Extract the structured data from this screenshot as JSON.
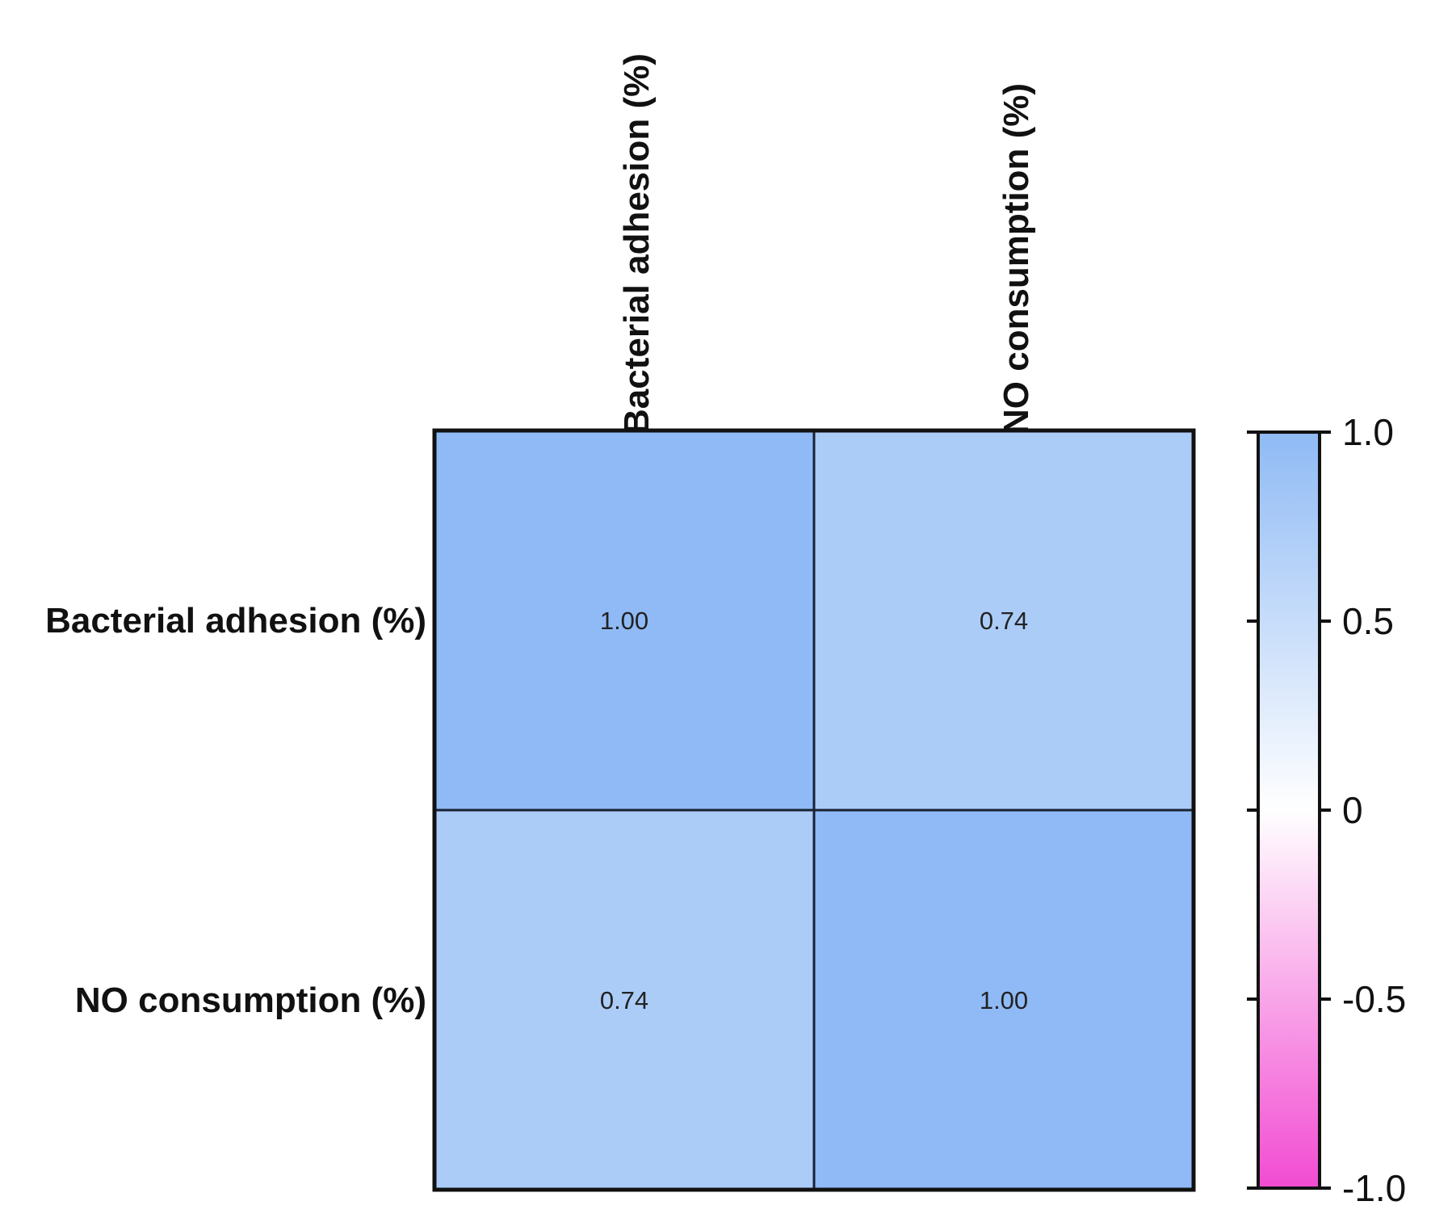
{
  "chart_data": {
    "type": "heatmap",
    "title": "",
    "rows": [
      "Bacterial adhesion (%)",
      "NO consumption (%)"
    ],
    "columns": [
      "Bacterial adhesion (%)",
      "NO consumption (%)"
    ],
    "values": [
      [
        1.0,
        0.74
      ],
      [
        0.74,
        1.0
      ]
    ],
    "value_labels": [
      [
        "1.00",
        "0.74"
      ],
      [
        "0.74",
        "1.00"
      ]
    ],
    "colorbar": {
      "range": [
        -1.0,
        1.0
      ],
      "ticks": [
        1.0,
        0.5,
        0,
        -0.5,
        -1.0
      ],
      "tick_labels": [
        "1.0",
        "0.5",
        "0",
        "-0.5",
        "-1.0"
      ],
      "color_high": "#8fbaf5",
      "color_mid": "#ffffff",
      "color_low": "#f24bd2"
    },
    "grid_color": "#1a2233",
    "legend_position": "right"
  }
}
